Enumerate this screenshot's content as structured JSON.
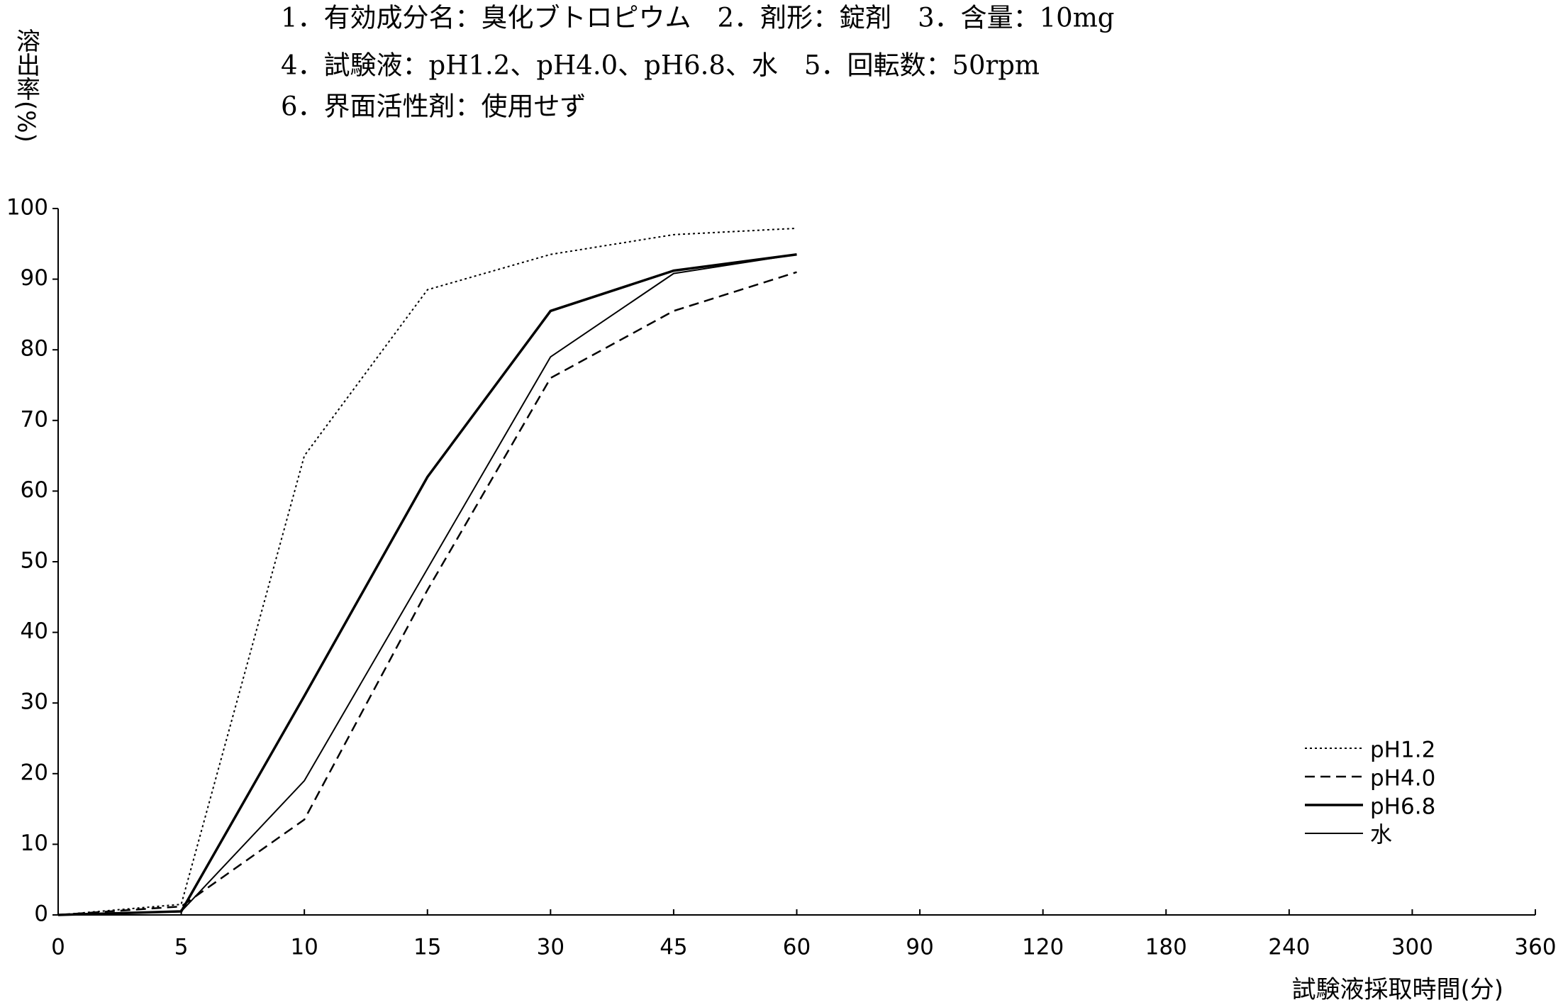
{
  "chart_data": {
    "type": "line",
    "title_lines": [
      "1．有効成分名：臭化ブトロピウム　2．剤形：錠剤　3．含量：10mg",
      "4．試験液：pH1.2、pH4.0、pH6.8、水　5．回転数：50rpm",
      "6．界面活性剤：使用せず"
    ],
    "y_label": "溶出率(%)",
    "x_label": "試験液採取時間(分)",
    "categories": [
      "0",
      "5",
      "10",
      "15",
      "30",
      "45",
      "60",
      "90",
      "120",
      "180",
      "240",
      "300",
      "360"
    ],
    "series": [
      {
        "name": "pH1.2",
        "color": "#000000",
        "line_style": "dotted",
        "line_width": 2,
        "values": [
          0,
          1.5,
          65,
          88.5,
          93.5,
          96.3,
          97.2,
          null,
          null,
          null,
          null,
          null,
          null
        ]
      },
      {
        "name": "pH4.0",
        "color": "#000000",
        "line_style": "dashed",
        "line_width": 2.5,
        "values": [
          0,
          1.2,
          13.5,
          46,
          76,
          85.5,
          91,
          null,
          null,
          null,
          null,
          null,
          null
        ]
      },
      {
        "name": "pH6.8",
        "color": "#000000",
        "line_style": "solid",
        "line_width": 3.5,
        "values": [
          0,
          0.5,
          31,
          62,
          85.5,
          91.2,
          93.5,
          null,
          null,
          null,
          null,
          null,
          null
        ]
      },
      {
        "name": "水",
        "color": "#000000",
        "line_style": "solid",
        "line_width": 2,
        "values": [
          0,
          0.5,
          19,
          49,
          79,
          90.8,
          93.5,
          null,
          null,
          null,
          null,
          null,
          null
        ]
      }
    ],
    "ylim": [
      0,
      100
    ],
    "yticks": [
      0,
      10,
      20,
      30,
      40,
      50,
      60,
      70,
      80,
      90,
      100
    ],
    "grid": false,
    "legend": "lower right"
  }
}
